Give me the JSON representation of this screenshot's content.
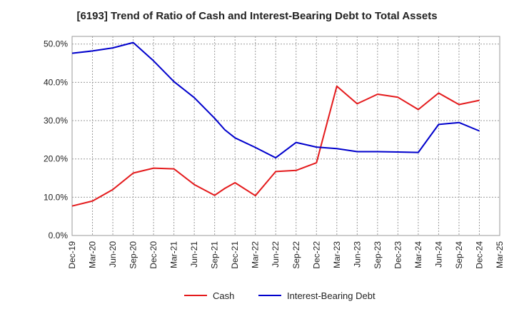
{
  "chart_data": {
    "type": "line",
    "title": "[6193]  Trend of Ratio of Cash and Interest-Bearing Debt to Total Assets",
    "xlabel": "",
    "ylabel": "",
    "ylim": [
      0,
      52
    ],
    "yticks": [
      0,
      10,
      20,
      30,
      40,
      50
    ],
    "ytick_labels": [
      "0.0%",
      "10.0%",
      "20.0%",
      "30.0%",
      "40.0%",
      "50.0%"
    ],
    "categories": [
      "Dec-19",
      "Mar-20",
      "Jun-20",
      "Sep-20",
      "Dec-20",
      "Mar-21",
      "Jun-21",
      "Sep-21",
      "Dec-21",
      "Mar-22",
      "Jun-22",
      "Sep-22",
      "Dec-22",
      "Mar-23",
      "Jun-23",
      "Sep-23",
      "Dec-23",
      "Mar-24",
      "Jun-24",
      "Sep-24",
      "Dec-24",
      "Mar-25"
    ],
    "series": [
      {
        "name": "Cash",
        "color": "#e41a1c",
        "x": [
          0,
          1,
          2,
          3,
          4,
          5,
          6,
          7,
          7.5,
          8,
          9,
          10,
          11,
          11.5,
          12,
          13,
          14,
          15,
          16,
          17,
          18,
          19,
          20
        ],
        "values": [
          7.7,
          9.0,
          12.0,
          16.3,
          17.6,
          17.4,
          13.3,
          10.5,
          12.3,
          13.8,
          10.4,
          16.7,
          17.0,
          18.0,
          19.0,
          39.0,
          34.4,
          36.9,
          36.1,
          32.9,
          37.2,
          34.2,
          35.3
        ]
      },
      {
        "name": "Interest-Bearing Debt",
        "color": "#0000cc",
        "x": [
          0,
          1,
          2,
          3,
          4,
          5,
          6,
          7,
          7.5,
          8,
          9,
          10,
          11,
          12,
          13,
          14,
          15,
          16,
          17,
          18,
          19,
          20
        ],
        "values": [
          47.6,
          48.2,
          49.0,
          50.4,
          45.6,
          40.2,
          36.0,
          30.6,
          27.6,
          25.5,
          23.0,
          20.3,
          24.3,
          23.1,
          22.7,
          21.9,
          21.9,
          21.8,
          21.7,
          29.0,
          29.5,
          27.3
        ]
      }
    ],
    "grid": true,
    "legend_position": "bottom-center"
  }
}
